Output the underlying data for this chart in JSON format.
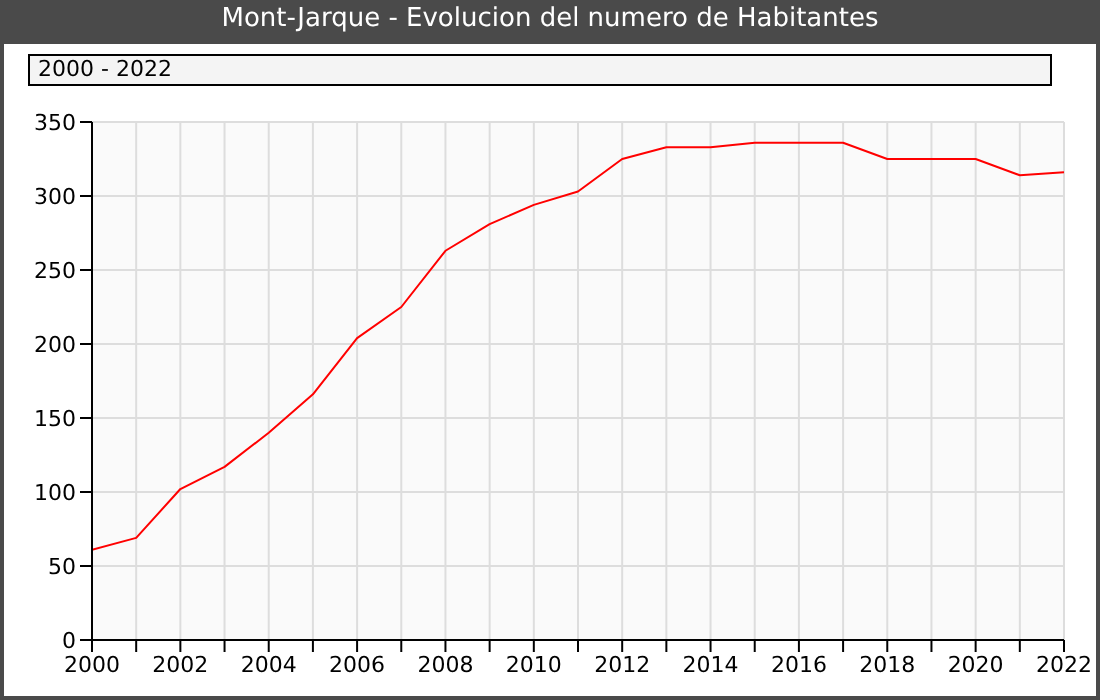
{
  "chart_data": {
    "type": "line",
    "title": "Mont-Jarque - Evolucion del numero de Habitantes",
    "subtitle": "2000 - 2022",
    "x": [
      2000,
      2001,
      2002,
      2003,
      2004,
      2005,
      2006,
      2007,
      2008,
      2009,
      2010,
      2011,
      2012,
      2013,
      2014,
      2015,
      2016,
      2017,
      2018,
      2019,
      2020,
      2021,
      2022
    ],
    "series": [
      {
        "color": "#ff0000",
        "values": [
          61,
          69,
          102,
          117,
          140,
          166,
          204,
          225,
          263,
          281,
          294,
          303,
          325,
          333,
          333,
          336,
          336,
          336,
          325,
          325,
          325,
          314,
          316
        ]
      }
    ],
    "xlim": [
      2000,
      2022
    ],
    "xticks": [
      2000,
      {
        "value": 2001,
        "label": null
      },
      2002,
      {
        "value": 2003,
        "label": null
      },
      2004,
      {
        "value": 2005,
        "label": null
      },
      2006,
      {
        "value": 2007,
        "label": null
      },
      2008,
      {
        "value": 2009,
        "label": null
      },
      2010,
      {
        "value": 2011,
        "label": null
      },
      2012,
      {
        "value": 2013,
        "label": null
      },
      2014,
      {
        "value": 2015,
        "label": null
      },
      2016,
      {
        "value": 2017,
        "label": null
      },
      2018,
      {
        "value": 2019,
        "label": null
      },
      2020,
      {
        "value": 2021,
        "label": null
      },
      2022
    ],
    "ylim": [
      0,
      350
    ],
    "yticks": [
      0,
      50,
      100,
      150,
      200,
      250,
      300,
      350
    ],
    "grid": true,
    "marker": "none",
    "line_style": "solid"
  }
}
